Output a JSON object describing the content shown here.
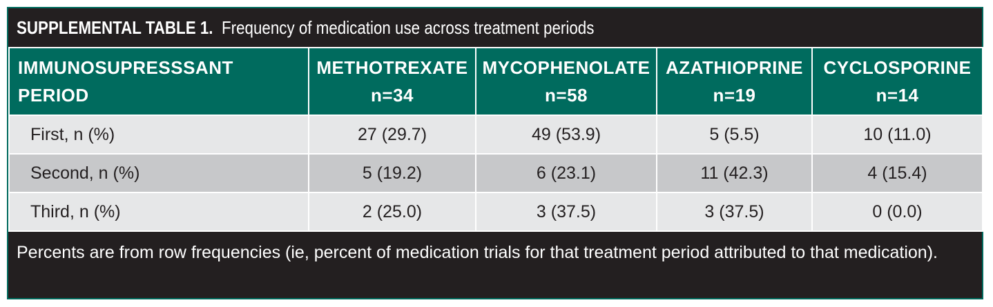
{
  "table": {
    "title_label": "SUPPLEMENTAL TABLE 1.",
    "title_text": "Frequency of medication use across treatment periods",
    "header": {
      "first_line1": "IMMUNOSUPRESSSANT",
      "first_line2": "PERIOD",
      "columns": [
        {
          "name": "METHOTREXATE",
          "n": "n=34"
        },
        {
          "name": "MYCOPHENOLATE",
          "n": "n=58"
        },
        {
          "name": "AZATHIOPRINE",
          "n": "n=19"
        },
        {
          "name": "CYCLOSPORINE",
          "n": "n=14"
        }
      ]
    },
    "rows": [
      {
        "label": "First, n (%)",
        "values": [
          "27 (29.7)",
          "49 (53.9)",
          "5 (5.5)",
          "10 (11.0)"
        ]
      },
      {
        "label": "Second, n (%)",
        "values": [
          "5 (19.2)",
          "6 (23.1)",
          "11 (42.3)",
          "4 (15.4)"
        ]
      },
      {
        "label": "Third, n (%)",
        "values": [
          "2 (25.0)",
          "3 (37.5)",
          "3 (37.5)",
          "0 (0.0)"
        ]
      }
    ],
    "footnote": "Percents are from row frequencies (ie, percent of medication trials for that treatment period attributed to that medication)."
  },
  "colors": {
    "header_bg": "#006b5e",
    "frame_bg": "#231f20",
    "row_light": "#e6e7e8",
    "row_dark": "#c7c8ca"
  }
}
